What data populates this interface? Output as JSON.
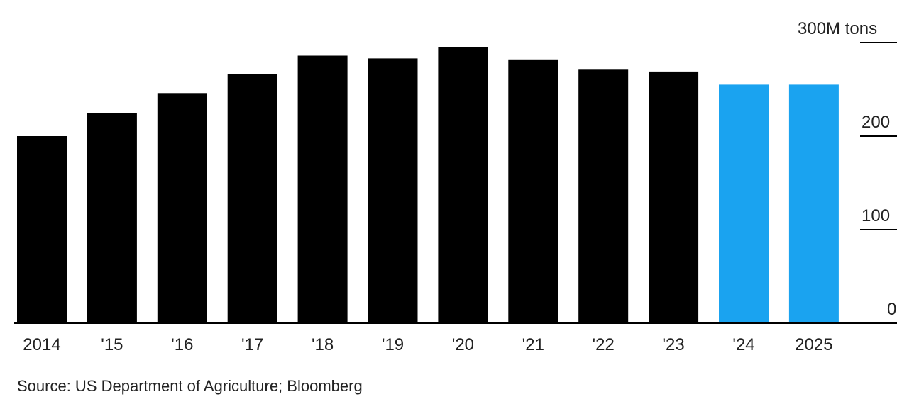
{
  "chart_data": {
    "type": "bar",
    "categories": [
      "2014",
      "'15",
      "'16",
      "'17",
      "'18",
      "'19",
      "'20",
      "'21",
      "'22",
      "'23",
      "'24",
      "2025"
    ],
    "values": [
      200,
      225,
      246,
      266,
      286,
      283,
      295,
      282,
      271,
      269,
      255,
      255
    ],
    "ylim": [
      0,
      300
    ],
    "y_ticks": [
      {
        "value": 0,
        "label": "0"
      },
      {
        "value": 100,
        "label": "100"
      },
      {
        "value": 200,
        "label": "200"
      },
      {
        "value": 300,
        "label": "300M tons"
      }
    ],
    "colors": {
      "actual": "#000000",
      "forecast": "#1aa3f0",
      "axis": "#000000",
      "text": "#222222"
    },
    "forecast_categories": [
      "'24",
      "2025"
    ],
    "grid": false,
    "legend": "none"
  },
  "source": "Source: US Department of Agriculture; Bloomberg"
}
